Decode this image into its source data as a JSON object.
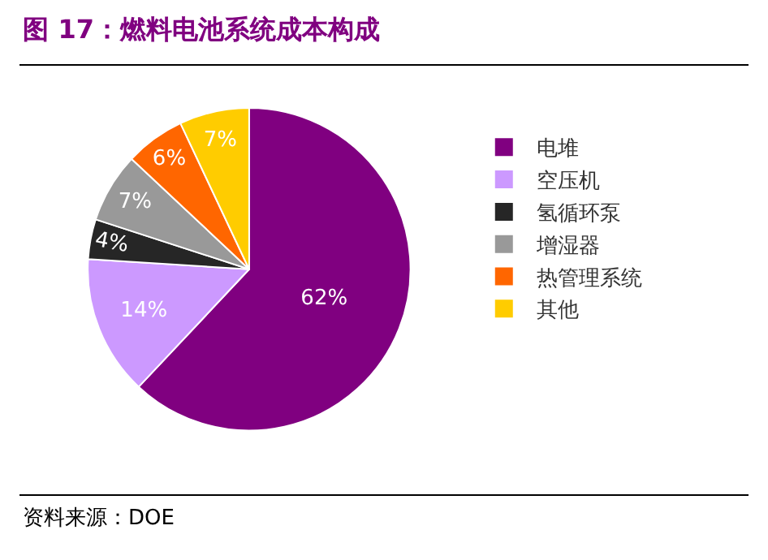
{
  "chart_data": {
    "type": "pie",
    "title": "图 17：燃料电池系统成本构成",
    "categories": [
      "电堆",
      "空压机",
      "氢循环泵",
      "增湿器",
      "热管理系统",
      "其他"
    ],
    "values": [
      62,
      14,
      4,
      7,
      6,
      7
    ],
    "value_labels": [
      "62%",
      "14%",
      "4%",
      "7%",
      "6%",
      "7%"
    ],
    "colors": [
      "#800080",
      "#cc99ff",
      "#262626",
      "#999999",
      "#ff6600",
      "#ffcc00"
    ],
    "legend": "right",
    "annotations": [
      "资料来源：DOE"
    ]
  }
}
